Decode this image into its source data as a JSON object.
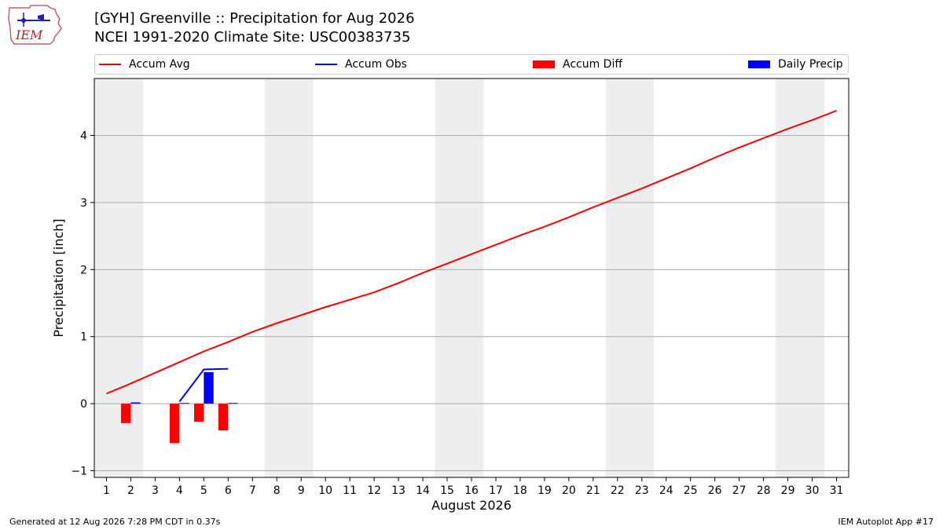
{
  "header": {
    "title_line1": "[GYH] Greenville :: Precipitation for Aug 2026",
    "title_line2": "NCEI 1991-2020 Climate Site: USC00383735",
    "logo_text": "IEM"
  },
  "legend": {
    "accum_avg": "Accum Avg",
    "accum_obs": "Accum Obs",
    "accum_diff": "Accum Diff",
    "daily_precip": "Daily Precip"
  },
  "colors": {
    "accum_avg": "#ff0000",
    "accum_obs": "#0000ff",
    "accum_diff": "#ff0000",
    "daily_precip": "#0000ff",
    "weekend_shade": "#eeeeee",
    "grid": "#aaaaaa"
  },
  "chart_data": {
    "type": "line",
    "xlabel": "August 2026",
    "ylabel": "Precipitation [inch]",
    "x_ticks": [
      1,
      2,
      3,
      4,
      5,
      6,
      7,
      8,
      9,
      10,
      11,
      12,
      13,
      14,
      15,
      16,
      17,
      18,
      19,
      20,
      21,
      22,
      23,
      24,
      25,
      26,
      27,
      28,
      29,
      30,
      31
    ],
    "xlim": [
      0.5,
      31.5
    ],
    "ylim": [
      -1.1,
      4.85
    ],
    "y_ticks": [
      -1,
      0,
      1,
      2,
      3,
      4
    ],
    "grid": "y-major",
    "shaded_weekend_ranges": [
      [
        0.5,
        2.5
      ],
      [
        7.5,
        9.5
      ],
      [
        14.5,
        16.5
      ],
      [
        21.5,
        23.5
      ],
      [
        28.5,
        30.5
      ]
    ],
    "series": [
      {
        "name": "Accum Avg",
        "kind": "line",
        "x": [
          1,
          2,
          3,
          4,
          5,
          6,
          7,
          8,
          9,
          10,
          11,
          12,
          13,
          14,
          15,
          16,
          17,
          18,
          19,
          20,
          21,
          22,
          23,
          24,
          25,
          26,
          27,
          28,
          29,
          30,
          31
        ],
        "values": [
          0.15,
          0.3,
          0.46,
          0.62,
          0.78,
          0.92,
          1.07,
          1.2,
          1.32,
          1.44,
          1.55,
          1.66,
          1.8,
          1.95,
          2.09,
          2.23,
          2.37,
          2.51,
          2.64,
          2.78,
          2.93,
          3.07,
          3.21,
          3.36,
          3.51,
          3.67,
          3.82,
          3.96,
          4.1,
          4.23,
          4.37
        ]
      },
      {
        "name": "Accum Obs",
        "kind": "line",
        "x": [
          2,
          3,
          4,
          5,
          6
        ],
        "values": [
          0.01,
          null,
          0.03,
          0.51,
          0.52
        ]
      },
      {
        "name": "Accum Diff",
        "kind": "bar",
        "x": [
          2,
          4,
          5,
          6
        ],
        "values": [
          -0.29,
          -0.59,
          -0.27,
          -0.4
        ]
      },
      {
        "name": "Daily Precip",
        "kind": "bar",
        "x": [
          2,
          4,
          5,
          6
        ],
        "values": [
          0.01,
          0.01,
          0.47,
          0.01
        ]
      }
    ]
  },
  "footer": {
    "generated": "Generated at 12 Aug 2026 7:28 PM CDT in 0.37s",
    "app": "IEM Autoplot App #17"
  }
}
